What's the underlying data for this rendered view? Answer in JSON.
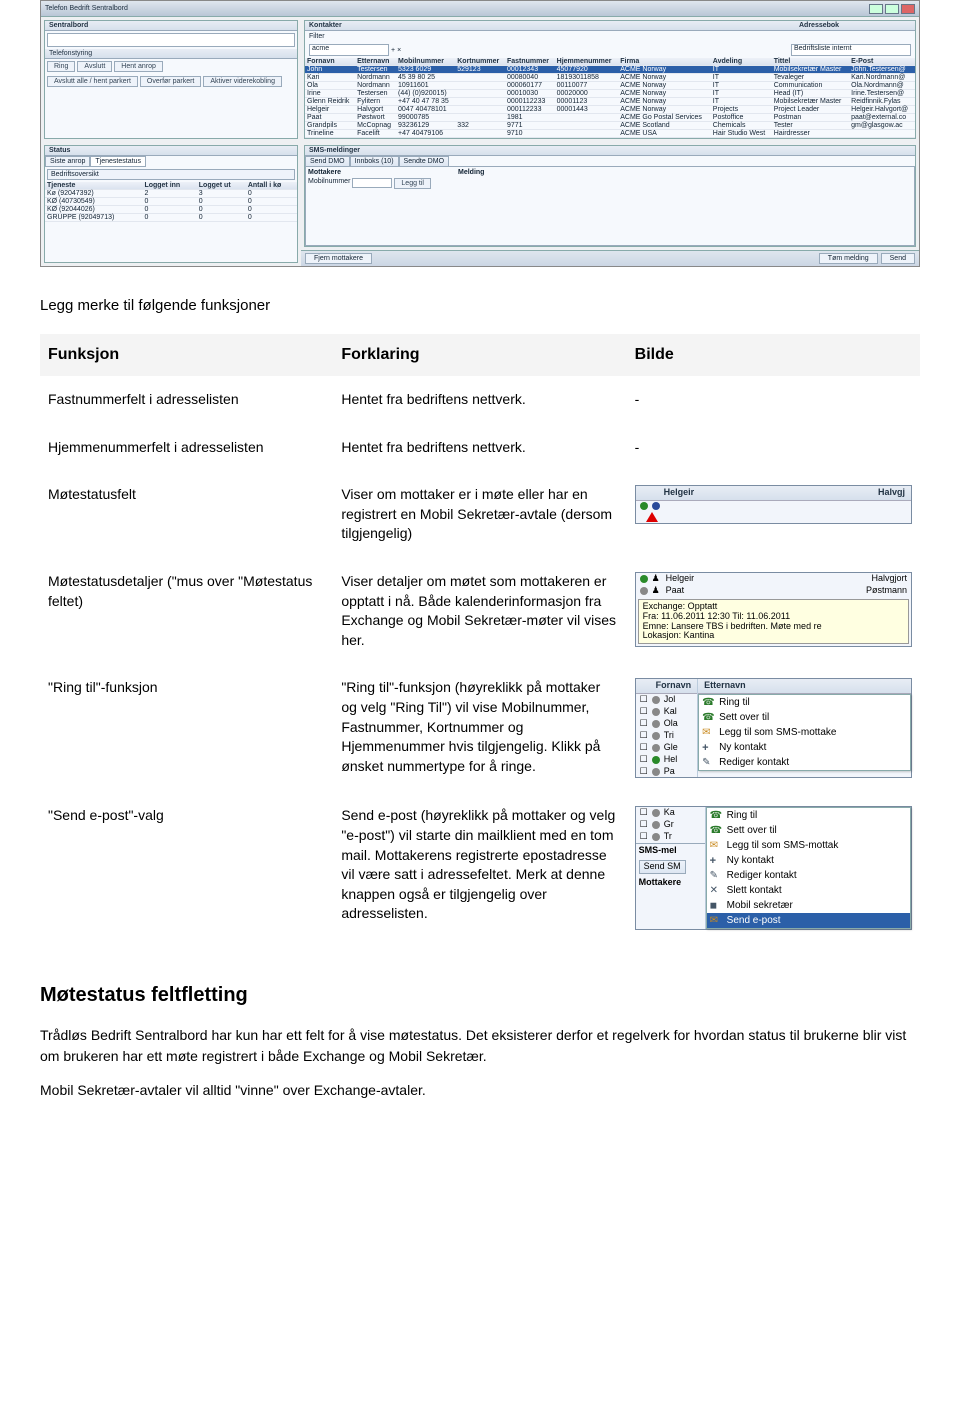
{
  "app": {
    "title": "Telefon Bedrift Sentralbord",
    "panels": {
      "sentralbord": "Sentralbord",
      "status": "Status",
      "kontakter": "Kontakter",
      "filter_label": "Filter",
      "telefonstyring": "Telefonstyring",
      "sms": "SMS-meldinger",
      "adressebok": "Adressebok",
      "bedriftslista": "Bedriftsliste internt"
    },
    "search_placeholder": "acme",
    "status_tabs": [
      "Siste anrop",
      "Tjenestestatus"
    ],
    "status_toolbar_text": "Bedriftsoversikt",
    "queue_columns": [
      "Tjeneste",
      "Logget inn",
      "Logget ut",
      "Antall i kø"
    ],
    "queue_rows": [
      [
        "Kø (92047392)",
        "2",
        "3",
        "0"
      ],
      [
        "KØ (40730549)",
        "0",
        "0",
        "0"
      ],
      [
        "KØ (92044026)",
        "0",
        "0",
        "0"
      ],
      [
        "GRUPPE (92049713)",
        "0",
        "0",
        "0"
      ]
    ],
    "contacts_columns": [
      "Fornavn",
      "Etternavn",
      "Mobilnummer",
      "Kortnummer",
      "Fastnummer",
      "Hjemmenummer",
      "Firma",
      "Avdeling",
      "Tittel",
      "E-Post"
    ],
    "contacts_rows": [
      [
        "John",
        "Testersen",
        "5323 6029",
        "529123",
        "00012343",
        "45077920",
        "ACME Norway",
        "IT",
        "Mobilsekretær Master",
        "John.Testersen@"
      ],
      [
        "Kari",
        "Nordmann",
        "45 39 80 25",
        "",
        "00080040",
        "18193011858",
        "ACME Norway",
        "IT",
        "Tevaleger",
        "Kari.Nordmann@"
      ],
      [
        "Ola",
        "Nordmann",
        "10911601",
        "",
        "000060177",
        "00110077",
        "ACME Norway",
        "IT",
        "Communication",
        "Ola.Nordmann@"
      ],
      [
        "Irine",
        "Testersen",
        "(44) (0)920015)",
        "",
        "00010030",
        "00020000",
        "ACME Norway",
        "IT",
        "Head (IT)",
        "Irine.Testersen@"
      ],
      [
        "Glenn Reidrik",
        "Fylitern",
        "+47 40 47 78 35",
        "",
        "0000112233",
        "00001123",
        "ACME Norway",
        "IT",
        "Mobilsekretær Master",
        "Reidfinnik.Fylas"
      ],
      [
        "Helgeir",
        "Halvgort",
        "0047 40478101",
        "",
        "000112233",
        "00001443",
        "ACME Norway",
        "Projects",
        "Project Leader",
        "Helgeir.Halvgort@"
      ],
      [
        "Paat",
        "Pøstwort",
        "99000785",
        "",
        "1981",
        "",
        "ACME Go Postal Services",
        "Postoffice",
        "Postman",
        "paat@external.co"
      ],
      [
        "Grandpils",
        "McCopnag",
        "93236129",
        "332",
        "9771",
        "",
        "ACME Scotland",
        "Chemicals",
        "Tester",
        "gm@glasgow.ac"
      ],
      [
        "Trineline",
        "Facelift",
        "+47 40479106",
        "",
        "9710",
        "",
        "ACME USA",
        "Hair Studio West",
        "Hairdresser",
        ""
      ]
    ],
    "sms_tabs": [
      "Send DMO",
      "Innboks (10)",
      "Sendte DMO"
    ],
    "sms_mottakere": "Mottakere",
    "sms_mobilnummer_label": "Mobilnummer",
    "sms_melding": "Melding",
    "sms_leggtil": "Legg til",
    "bottom_left_btn": "Fjern mottakere",
    "bottom_right_btns": [
      "Tøm melding",
      "Send"
    ],
    "callbtns": [
      "Ring",
      "Avslutt",
      "Hent anrop"
    ],
    "callbtns2": [
      "Avslutt alle / hent parkert",
      "Overfør parkert",
      "Aktiver viderekobling"
    ]
  },
  "intro": "Legg merke til følgende funksjoner",
  "table_head": {
    "funksjon": "Funksjon",
    "forklaring": "Forklaring",
    "bilde": "Bilde"
  },
  "rows": {
    "fastnummer": {
      "funksjon": "Fastnummerfelt i adresselisten",
      "forklaring": "Hentet fra bedriftens nettverk.",
      "bilde": "-"
    },
    "hjemmenummer": {
      "funksjon": "Hjemmenummerfelt i adresselisten",
      "forklaring": "Hentet fra bedriftens nettverk.",
      "bilde": "-"
    },
    "motestatus": {
      "funksjon": "Møtestatusfelt",
      "forklaring": "Viser om mottaker er i møte eller har en registrert en Mobil Sekretær-avtale (dersom tilgjengelig)"
    },
    "motestatus_det": {
      "funksjon": "Møtestatusdetaljer (\"mus over \"Møtestatus feltet)",
      "forklaring": "Viser detaljer om møtet som mottakeren er opptatt i nå. Både kalenderinformasjon fra Exchange og Mobil Sekretær-møter vil vises her."
    },
    "ring_til": {
      "funksjon": "\"Ring til\"-funksjon",
      "forklaring": "\"Ring til\"-funksjon (høyreklikk på mottaker og velg \"Ring Til\") vil vise Mobilnummer, Fastnummer, Kortnummer og Hjemmenummer hvis tilgjengelig. Klikk på ønsket nummertype for å ringe."
    },
    "send_epost": {
      "funksjon": "\"Send e-post\"-valg",
      "forklaring": "Send e-post (høyreklikk på mottaker og velg \"e-post\") vil starte din mailklient med en tom mail. Mottakerens registrerte epostadresse vil være satt i adressefeltet. Merk at denne knappen også er tilgjengelig over adresselisten."
    }
  },
  "thumb_status": {
    "head": [
      "",
      "Helgeir",
      "Halvgj"
    ]
  },
  "thumb_details": {
    "head_rows": [
      {
        "name": "Helgeir",
        "role": "Halvgjort"
      },
      {
        "name": "Paat",
        "role": "Pøstmann"
      }
    ],
    "tooltip_lines": [
      "Exchange: Opptatt",
      "Fra: 11.06.2011 12:30 Til: 11.06.2011",
      "Emne: Lansere TBS i bedriften. Møte med re",
      "Lokasjon: Kantina"
    ]
  },
  "thumb_ringtil": {
    "cols": [
      "Fornavn",
      "Etternavn"
    ],
    "names": [
      "Jol",
      "Kal",
      "Ola",
      "Tri",
      "Gle",
      "Hel",
      "Pa"
    ],
    "menu": [
      "Ring til",
      "Sett over til",
      "Legg til som SMS-mottake",
      "Ny kontakt",
      "Rediger kontakt"
    ]
  },
  "thumb_epost": {
    "names": [
      "Ka",
      "Gr",
      "Tr"
    ],
    "tabs": [
      "Send SM"
    ],
    "sms_label": "SMS-mel",
    "mottakere": "Mottakere",
    "menu": [
      "Ring til",
      "Sett over til",
      "Legg til som SMS-mottak",
      "Ny kontakt",
      "Rediger kontakt",
      "Slett kontakt",
      "Mobil sekretær",
      "Send e-post"
    ]
  },
  "section_title": "Møtestatus feltfletting",
  "section_p1": "Trådløs Bedrift Sentralbord har kun har ett felt for å vise møtestatus. Det eksisterer derfor et regelverk for hvordan status til brukerne blir vist om brukeren har ett møte registrert i både Exchange og Mobil Sekretær.",
  "section_p2": "Mobil Sekretær-avtaler vil alltid \"vinne\" over Exchange-avtaler.",
  "colors": {
    "panel_border": "#7a8ca2",
    "header_grad_top": "#e8edf5",
    "header_grad_bot": "#d6e0ec",
    "selected_row": "#2b5fa8",
    "tooltip_bg": "#ffffe1",
    "arrow": "#d00000"
  }
}
